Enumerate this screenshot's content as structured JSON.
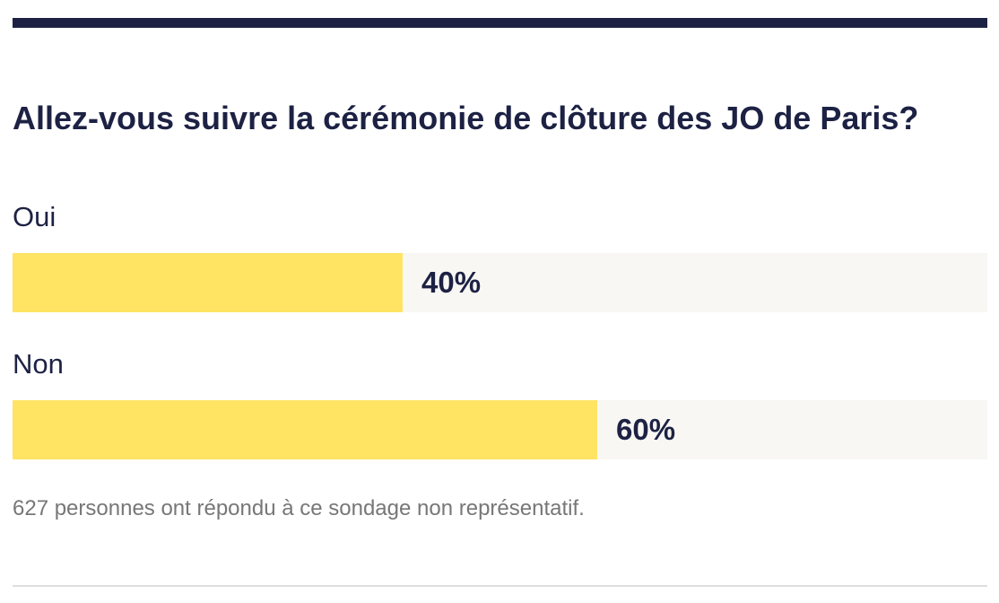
{
  "poll": {
    "question": "Allez-vous suivre la cérémonie de clôture des JO de Paris?",
    "options": [
      {
        "label": "Oui",
        "percent_label": "40%",
        "percent": 40
      },
      {
        "label": "Non",
        "percent_label": "60%",
        "percent": 60
      }
    ],
    "footnote": "627 personnes ont répondu à ce sondage non représentatif."
  },
  "colors": {
    "accent_dark": "#1d2244",
    "bar_fill": "#ffe363",
    "bar_track": "#f8f7f3",
    "footnote": "#777777"
  }
}
